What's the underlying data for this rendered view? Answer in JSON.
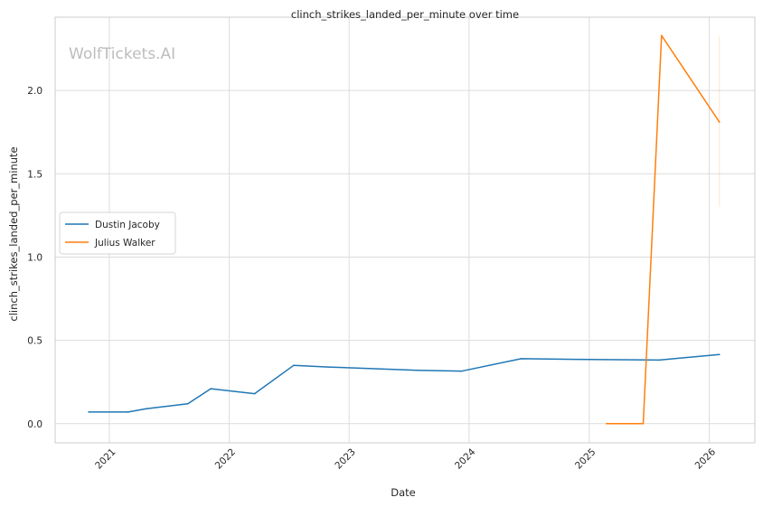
{
  "watermark": "WolfTickets.AI",
  "chart_data": {
    "type": "line",
    "title": "clinch_strikes_landed_per_minute over time",
    "xlabel": "Date",
    "ylabel": "clinch_strikes_landed_per_minute",
    "x_ticks": [
      "2021",
      "2022",
      "2023",
      "2024",
      "2025",
      "2026"
    ],
    "y_ticks": [
      "0.0",
      "0.5",
      "1.0",
      "1.5",
      "2.0"
    ],
    "xlim": [
      "2020-07-20",
      "2026-05-20"
    ],
    "ylim": [
      -0.115,
      2.44
    ],
    "grid": true,
    "legend_position": "center-left",
    "series": [
      {
        "name": "Dustin Jacoby",
        "color": "#1f77b4",
        "points": [
          {
            "x": "2020-10-30",
            "y": 0.07
          },
          {
            "x": "2021-02-27",
            "y": 0.07
          },
          {
            "x": "2021-04-24",
            "y": 0.09
          },
          {
            "x": "2021-08-28",
            "y": 0.12
          },
          {
            "x": "2021-11-06",
            "y": 0.21
          },
          {
            "x": "2022-03-19",
            "y": 0.18
          },
          {
            "x": "2022-07-16",
            "y": 0.35
          },
          {
            "x": "2022-10-29",
            "y": 0.34
          },
          {
            "x": "2023-07-29",
            "y": 0.32
          },
          {
            "x": "2023-12-09",
            "y": 0.315
          },
          {
            "x": "2024-06-08",
            "y": 0.39
          },
          {
            "x": "2025-01-01",
            "y": 0.385
          },
          {
            "x": "2025-08-02",
            "y": 0.382
          },
          {
            "x": "2026-02-01",
            "y": 0.415
          }
        ]
      },
      {
        "name": "Julius Walker",
        "color": "#ff7f0e",
        "points": [
          {
            "x": "2025-02-22",
            "y": 0.0
          },
          {
            "x": "2025-06-14",
            "y": 0.0
          },
          {
            "x": "2025-08-09",
            "y": 2.33
          },
          {
            "x": "2026-02-01",
            "y": 1.81
          }
        ],
        "error_bar": {
          "x": "2026-02-01",
          "low": 1.3,
          "high": 2.33
        }
      }
    ]
  }
}
